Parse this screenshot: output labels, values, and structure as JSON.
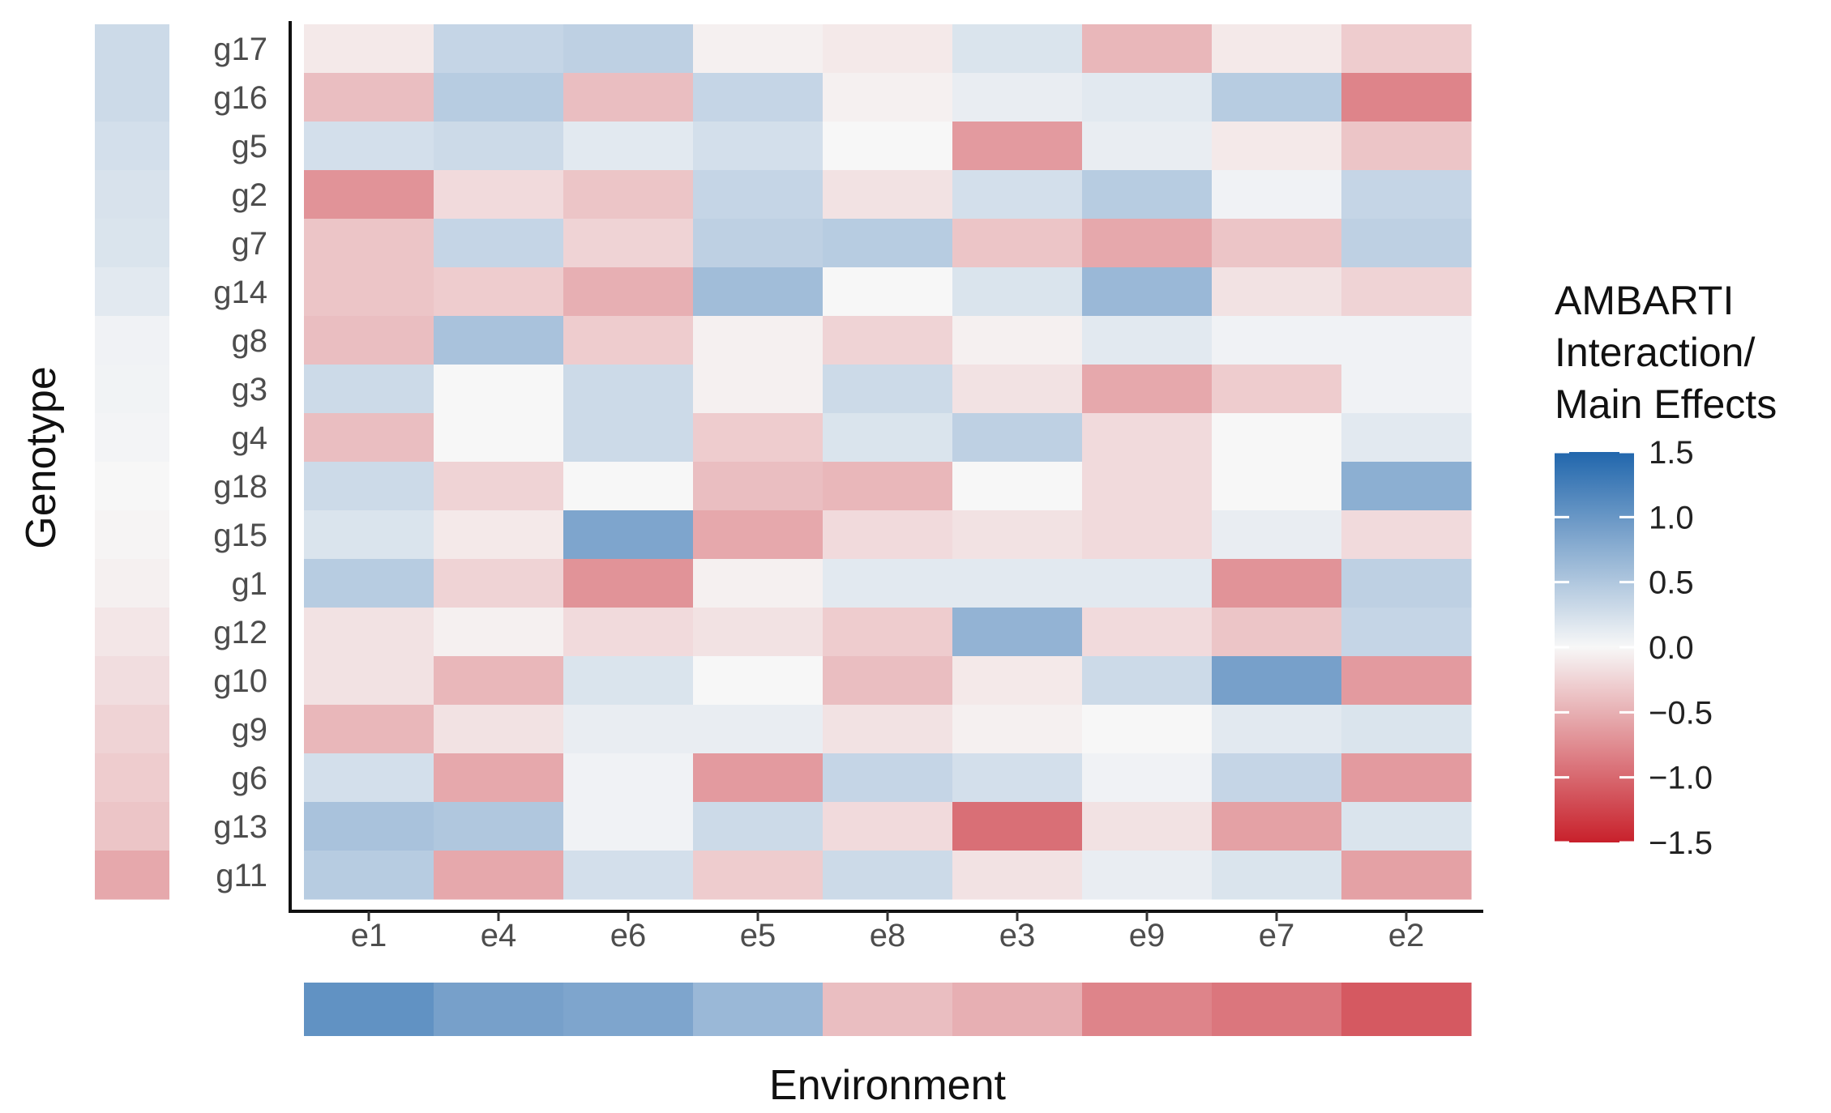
{
  "chart_data": {
    "type": "heatmap",
    "xlabel": "Environment",
    "ylabel": "Genotype",
    "legend_title": [
      "AMBARTI",
      "Interaction/",
      "Main Effects"
    ],
    "legend_placement": "right",
    "color_scale": {
      "min": -1.5,
      "max": 1.5,
      "low_color": "#c8202b",
      "mid_color": "#f7f7f7",
      "high_color": "#2166ac",
      "ticks": [
        1.5,
        1.0,
        0.5,
        0.0,
        -0.5,
        -1.0,
        -1.5
      ],
      "tick_labels": [
        "1.5",
        "1.0",
        "0.5",
        "0.0",
        "−0.5",
        "−1.0",
        "−1.5"
      ]
    },
    "x_categories": [
      "e1",
      "e4",
      "e6",
      "e5",
      "e8",
      "e3",
      "e9",
      "e7",
      "e2"
    ],
    "y_categories": [
      "g17",
      "g16",
      "g5",
      "g2",
      "g7",
      "g14",
      "g8",
      "g3",
      "g4",
      "g18",
      "g15",
      "g1",
      "g12",
      "g10",
      "g9",
      "g6",
      "g13",
      "g11"
    ],
    "interaction_values": [
      [
        -0.1,
        0.35,
        0.4,
        -0.05,
        -0.1,
        0.2,
        -0.45,
        -0.1,
        -0.3
      ],
      [
        -0.4,
        0.45,
        -0.4,
        0.35,
        -0.05,
        0.1,
        0.15,
        0.45,
        -0.8
      ],
      [
        0.25,
        0.3,
        0.15,
        0.25,
        0.0,
        -0.65,
        0.1,
        -0.1,
        -0.35
      ],
      [
        -0.7,
        -0.2,
        -0.35,
        0.35,
        -0.15,
        0.25,
        0.45,
        0.05,
        0.35
      ],
      [
        -0.35,
        0.35,
        -0.25,
        0.4,
        0.45,
        -0.35,
        -0.55,
        -0.35,
        0.4
      ],
      [
        -0.35,
        -0.3,
        -0.5,
        0.6,
        0.0,
        0.2,
        0.65,
        -0.15,
        -0.25
      ],
      [
        -0.4,
        0.55,
        -0.3,
        -0.05,
        -0.25,
        -0.05,
        0.15,
        0.05,
        0.05
      ],
      [
        0.3,
        0.0,
        0.3,
        -0.05,
        0.3,
        -0.15,
        -0.55,
        -0.3,
        0.05
      ],
      [
        -0.4,
        0.0,
        0.3,
        -0.3,
        0.2,
        0.4,
        -0.2,
        0.0,
        0.15
      ],
      [
        0.3,
        -0.25,
        0.0,
        -0.4,
        -0.45,
        0.0,
        -0.2,
        0.0,
        0.75
      ],
      [
        0.2,
        -0.1,
        0.85,
        -0.55,
        -0.2,
        -0.15,
        -0.2,
        0.1,
        -0.2
      ],
      [
        0.45,
        -0.25,
        -0.7,
        -0.05,
        0.15,
        0.15,
        0.15,
        -0.7,
        0.4
      ],
      [
        -0.15,
        -0.05,
        -0.2,
        -0.15,
        -0.3,
        0.7,
        -0.2,
        -0.35,
        0.35
      ],
      [
        -0.15,
        -0.45,
        0.2,
        0.0,
        -0.4,
        -0.1,
        0.3,
        0.9,
        -0.65
      ],
      [
        -0.45,
        -0.15,
        0.1,
        0.1,
        -0.15,
        -0.05,
        0.0,
        0.15,
        0.2
      ],
      [
        0.25,
        -0.55,
        0.05,
        -0.65,
        0.35,
        0.25,
        0.05,
        0.35,
        -0.65
      ],
      [
        0.55,
        0.5,
        0.05,
        0.3,
        -0.2,
        -0.95,
        -0.15,
        -0.6,
        0.2
      ],
      [
        0.45,
        -0.55,
        0.25,
        -0.3,
        0.3,
        -0.15,
        0.1,
        0.2,
        -0.6
      ]
    ],
    "genotype_main_effects": [
      0.3,
      0.3,
      0.25,
      0.22,
      0.2,
      0.15,
      0.05,
      0.04,
      0.03,
      0.0,
      -0.02,
      -0.05,
      -0.12,
      -0.18,
      -0.25,
      -0.3,
      -0.35,
      -0.55
    ],
    "environment_main_effects": [
      1.05,
      0.9,
      0.85,
      0.65,
      -0.4,
      -0.5,
      -0.8,
      -0.9,
      -1.1
    ]
  }
}
